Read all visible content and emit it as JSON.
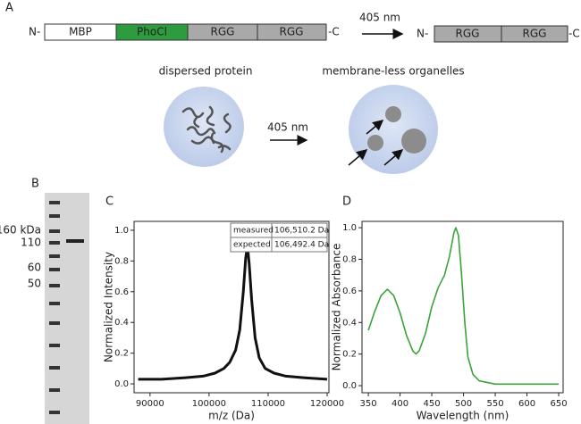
{
  "panel_a": {
    "label": "A",
    "construct": {
      "n_term": "N-",
      "c_term": "-C",
      "domains": [
        "MBP",
        "PhoCl",
        "RGG",
        "RGG"
      ]
    },
    "light": "405 nm",
    "product": {
      "n_term": "N-",
      "c_term": "-C",
      "domains": [
        "RGG",
        "RGG"
      ]
    },
    "left_caption": "dispersed protein",
    "right_caption": "membrane-less organelles",
    "light2": "405 nm"
  },
  "panel_b": {
    "label": "B",
    "markers": [
      "160 kDa",
      "110",
      "60",
      "50"
    ]
  },
  "chart_data": [
    {
      "type": "line",
      "panel": "C",
      "xlabel": "m/z (Da)",
      "ylabel": "Normalized Intensity",
      "color": "#111111",
      "x": [
        88000,
        92000,
        96000,
        99000,
        101000,
        102500,
        103500,
        104500,
        105200,
        105800,
        106200,
        106500,
        106800,
        107200,
        107800,
        108500,
        109500,
        111000,
        113000,
        116000,
        120000
      ],
      "values": [
        0.03,
        0.03,
        0.04,
        0.05,
        0.07,
        0.1,
        0.14,
        0.22,
        0.35,
        0.6,
        0.82,
        0.9,
        0.78,
        0.55,
        0.3,
        0.17,
        0.1,
        0.07,
        0.05,
        0.04,
        0.03
      ],
      "xlim": [
        87300,
        120300
      ],
      "ylim": [
        -0.058,
        1.058
      ],
      "xticks": [
        90000,
        100000,
        110000,
        120000
      ],
      "yticks": [
        {
          "value": 0,
          "label": "0.0"
        },
        0.2,
        0.4,
        0.6,
        0.8,
        {
          "value": 1,
          "label": "1.0"
        }
      ],
      "table": [
        [
          "measured",
          "106,510.2 Da"
        ],
        [
          "expected",
          "106,492.4 Da"
        ]
      ]
    },
    {
      "type": "line",
      "panel": "D",
      "xlabel": "Wavelength (nm)",
      "ylabel": "Normalized Absorbance",
      "color": "#3aa43a",
      "x": [
        350,
        360,
        370,
        380,
        390,
        400,
        410,
        420,
        425,
        430,
        440,
        450,
        460,
        470,
        478,
        485,
        488,
        492,
        497,
        502,
        507,
        515,
        525,
        550,
        600,
        650
      ],
      "values": [
        0.35,
        0.47,
        0.57,
        0.61,
        0.57,
        0.46,
        0.32,
        0.22,
        0.2,
        0.22,
        0.33,
        0.5,
        0.62,
        0.7,
        0.82,
        0.97,
        1.0,
        0.95,
        0.7,
        0.4,
        0.18,
        0.07,
        0.03,
        0.01,
        0.01,
        0.01
      ],
      "xlim": [
        340,
        657
      ],
      "ylim": [
        -0.045,
        1.04
      ],
      "xticks": [
        350,
        400,
        450,
        500,
        550,
        600,
        650
      ],
      "yticks": [
        {
          "value": 0,
          "label": "0.0"
        },
        0.2,
        0.4,
        0.6,
        0.8,
        {
          "value": 1,
          "label": "1.0"
        }
      ]
    }
  ]
}
